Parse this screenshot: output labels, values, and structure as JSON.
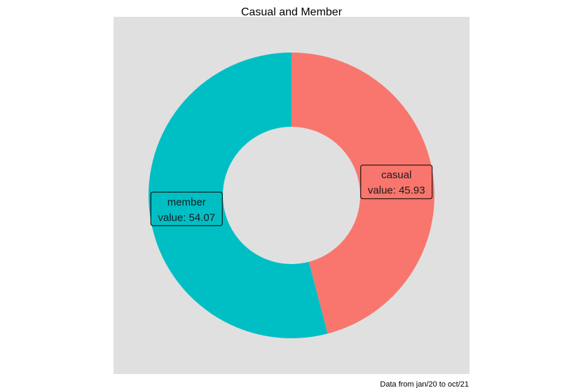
{
  "chart_data": {
    "type": "pie",
    "title": "Casual and Member",
    "caption": "Data from jan/20 to oct/21",
    "donut": true,
    "panel_background": "#e0e0e0",
    "slices": [
      {
        "label": "casual",
        "value": 45.93,
        "value_text": "value: 45.93",
        "color": "#F8766D"
      },
      {
        "label": "member",
        "value": 54.07,
        "value_text": "value: 54.07",
        "color": "#00BFC4"
      }
    ]
  }
}
